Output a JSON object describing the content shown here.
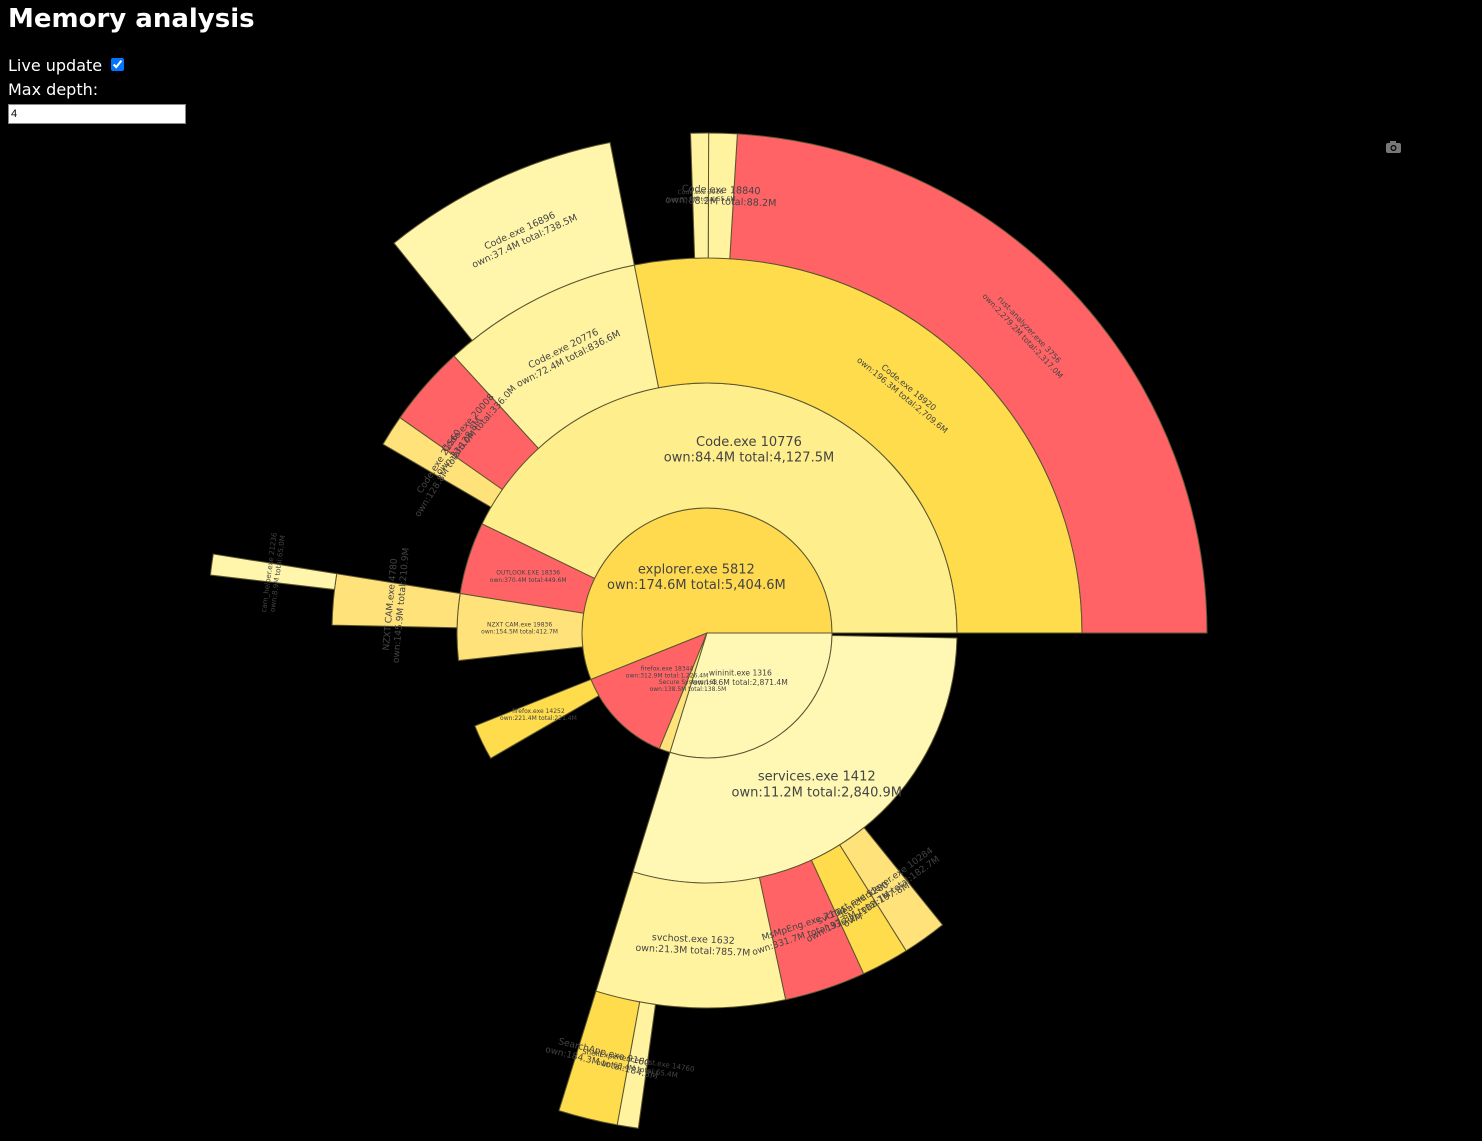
{
  "header": {
    "title": "Memory analysis",
    "live_update": "Live update",
    "max_depth_label": "Max depth:",
    "max_depth": 4
  },
  "chart_data": {
    "type": "sunburst",
    "nodes": [
      {
        "name": "explorer.exe 5812",
        "label": "own:174.6M total:5,404.6M",
        "total": 5404.6,
        "color": "#ffda4f",
        "children": [
          {
            "name": "Code.exe 10776",
            "label": "own:84.4M total:4,127.5M",
            "total": 4127.5,
            "color": "#ffee8c",
            "children": [
              {
                "name": "Code.exe 18920",
                "label": "own:196.3M total:2,709.6M",
                "total": 2709.6,
                "color": "#ffdc4c",
                "children": [
                  {
                    "name": "rust-analyzer.exe 3756",
                    "label": "own:2,279.2M total:2,317.0M",
                    "total": 2317.0,
                    "color": "#ff6366"
                  },
                  {
                    "name": "Code.exe 18840",
                    "label": "own:88.2M total:88.2M",
                    "total": 88.2,
                    "color": "#fff3a0"
                  },
                  {
                    "name": "Code.exe 9916",
                    "label": "own:55.6M total:55.6M",
                    "total": 55.6,
                    "color": "#fff3a0"
                  }
                ]
              },
              {
                "name": "Code.exe 20776",
                "label": "own:72.4M total:836.6M",
                "total": 836.6,
                "color": "#fff3a0",
                "children": [
                  {
                    "name": "Code.exe 16896",
                    "label": "own:37.4M total:738.5M",
                    "total": 738.5,
                    "color": "#fff6ab"
                  }
                ]
              },
              {
                "name": "Code.exe 20008",
                "label": "own:336.0M total:336.0M",
                "total": 336.0,
                "color": "#ff6366"
              },
              {
                "name": "Code.exe 21560",
                "label": "own:128.8M total:128.8M",
                "total": 128.8,
                "color": "#ffe37a"
              }
            ]
          },
          {
            "name": "OUTLOOK.EXE 18336",
            "label": "own:370.4M total:449.6M",
            "total": 449.6,
            "color": "#ff6366"
          },
          {
            "name": "NZXT CAM.exe 19836",
            "label": "own:154.5M total:412.7M",
            "total": 412.7,
            "color": "#ffe37a",
            "children": [
              {
                "name": "NZXT CAM.exe 4780",
                "label": "own:145.9M total:210.9M",
                "total": 210.9,
                "color": "#ffe37a",
                "children": [
                  {
                    "name": "cam_helper.exe 21236",
                    "label": "own:8.9M total:65.0M",
                    "total": 65.0,
                    "color": "#fff6ab"
                  }
                ]
              }
            ]
          }
        ]
      },
      {
        "name": "firefox.exe 18344",
        "label": "own:312.9M total:1,226.4M",
        "total": 1226.4,
        "color": "#ff6366",
        "children": [
          {
            "name": "firefox.exe 14252",
            "label": "own:221.4M total:221.4M",
            "total": 221.4,
            "color": "#ffdc4c"
          }
        ]
      },
      {
        "name": "Secure System 168",
        "label": "own:138.5M total:138.5M",
        "total": 138.5,
        "color": "#ffe37a"
      },
      {
        "name": "wininit.exe 1316",
        "label": "own:4.6M total:2,871.4M",
        "total": 2871.4,
        "color": "#fff8b5",
        "children": [
          {
            "name": "services.exe 1412",
            "label": "own:11.2M total:2,840.9M",
            "total": 2840.9,
            "color": "#fff8b5",
            "children": [
              {
                "name": "svchost.exe 1632",
                "label": "own:21.3M total:785.7M",
                "total": 785.7,
                "color": "#fff3a0",
                "children": [
                  {
                    "name": "SearchApp.exe 9160",
                    "label": "own:184.3M total:184.3M",
                    "total": 184.3,
                    "color": "#ffdc4c"
                  },
                  {
                    "name": "ShellExperienceHost.exe 14760",
                    "label": "own:65.4M total:65.4M",
                    "total": 65.4,
                    "color": "#fff3a0"
                  }
                ]
              },
              {
                "name": "MsMpEng.exe 7104",
                "label": "own:331.7M total:336.7M",
                "total": 336.7,
                "color": "#ff6366"
              },
              {
                "name": "svchost.exe 5280",
                "label": "own:197.8M total:197.8M",
                "total": 197.8,
                "color": "#ffdc4c"
              },
              {
                "name": "SearchIndexer.exe 10284",
                "label": "own:182.7M total:182.7M",
                "total": 182.7,
                "color": "#ffe37a"
              }
            ]
          }
        ]
      }
    ]
  }
}
